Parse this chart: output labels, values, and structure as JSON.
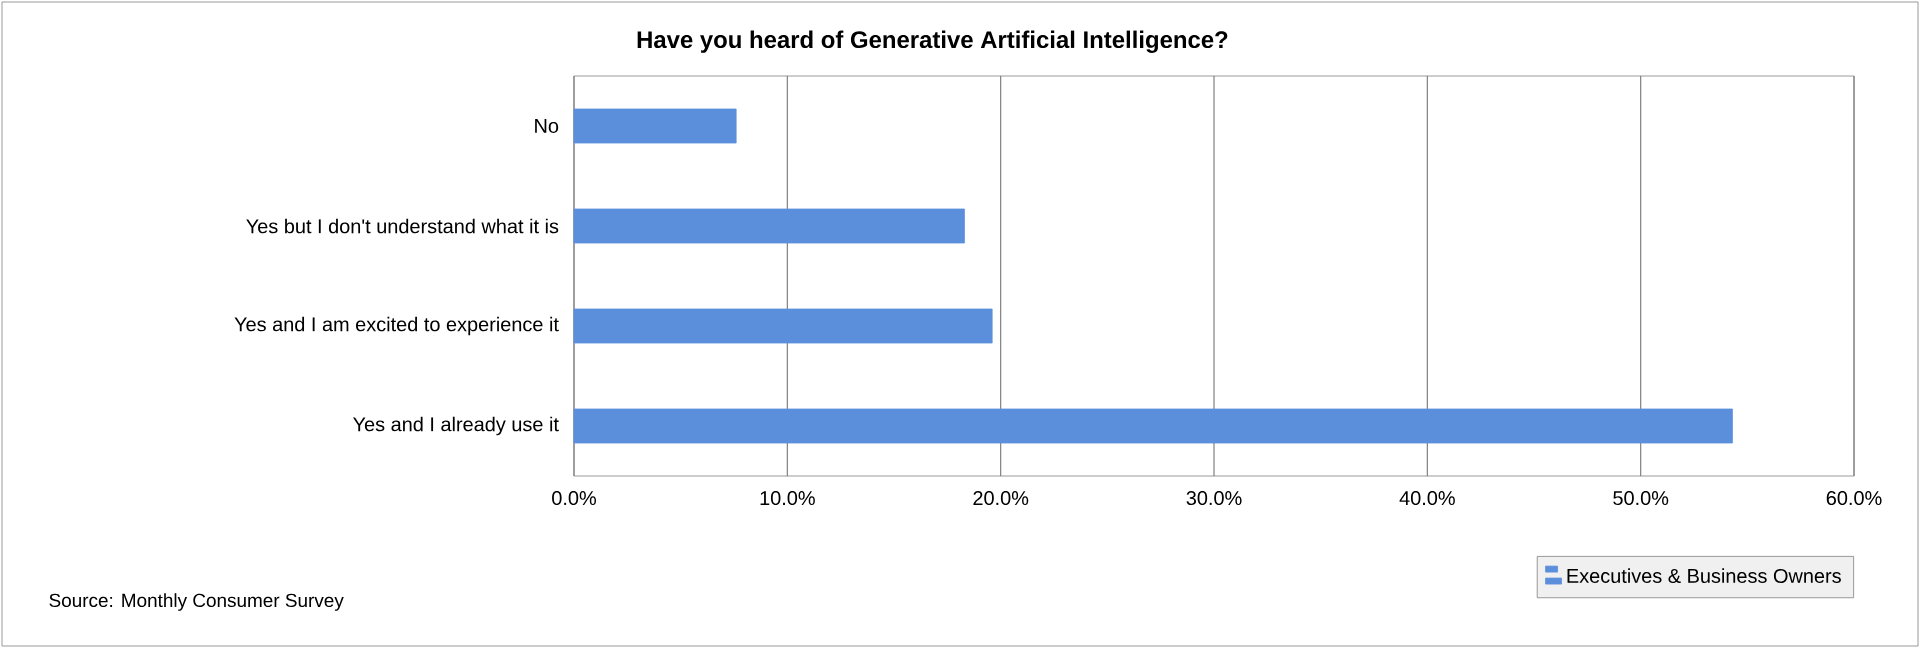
{
  "chart_data": {
    "type": "bar",
    "orientation": "horizontal",
    "title": "Have you heard of Generative Artificial Intelligence?",
    "categories": [
      "No",
      "Yes but I don't understand what it is",
      "Yes and I am excited to experience it",
      "Yes and I already use it"
    ],
    "series": [
      {
        "name": "Executives & Business Owners",
        "color": "#5b8fdc",
        "values": [
          7.6,
          18.3,
          19.6,
          54.3
        ]
      }
    ],
    "xlim": [
      0,
      60
    ],
    "xticks": [
      {
        "value": 0,
        "label": "0.0%"
      },
      {
        "value": 10,
        "label": "10.0%"
      },
      {
        "value": 20,
        "label": "20.0%"
      },
      {
        "value": 30,
        "label": "30.0%"
      },
      {
        "value": 40,
        "label": "40.0%"
      },
      {
        "value": 50,
        "label": "50.0%"
      },
      {
        "value": 60,
        "label": "60.0%"
      }
    ],
    "grid": "x",
    "legend": "bottom right",
    "annotations": [
      "Source: Monthly Consumer Survey"
    ]
  }
}
